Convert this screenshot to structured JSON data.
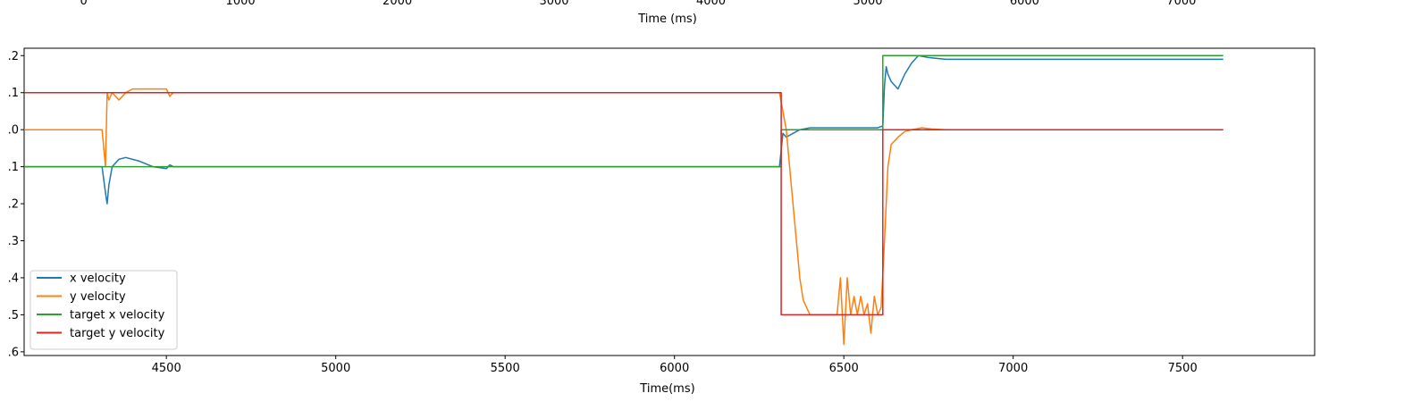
{
  "chart_data": [
    {
      "type": "line",
      "xlabel": "Time (ms)",
      "xlim": [
        -380,
        7850
      ],
      "x_ticks": [
        0,
        1000,
        2000,
        3000,
        4000,
        5000,
        6000,
        7000
      ],
      "series": []
    },
    {
      "type": "line",
      "xlabel": "Time(ms)",
      "ylabel": "",
      "xlim": [
        4080,
        7890
      ],
      "ylim": [
        -0.61,
        0.22
      ],
      "x_ticks": [
        4500,
        5000,
        5500,
        6000,
        6500,
        7000,
        7500
      ],
      "y_ticks": [
        0.2,
        0.1,
        0.0,
        -0.1,
        -0.2,
        -0.3,
        -0.4,
        -0.5,
        -0.6
      ],
      "y_tick_labels": [
        ".2",
        ".1",
        ".0",
        ".1",
        ".2",
        ".3",
        ".4",
        ".5",
        ".6"
      ],
      "grid": false,
      "legend_position": "lower-left",
      "series": [
        {
          "name": "x velocity",
          "color": "#1f77b4",
          "x": [
            4080,
            4310,
            4320,
            4325,
            4330,
            4340,
            4360,
            4380,
            4420,
            4460,
            4500,
            4510,
            4520,
            4600,
            4800,
            5000,
            5200,
            5400,
            5600,
            5800,
            6000,
            6100,
            6200,
            6310,
            6320,
            6330,
            6350,
            6370,
            6400,
            6450,
            6500,
            6550,
            6600,
            6615,
            6620,
            6625,
            6630,
            6640,
            6660,
            6680,
            6700,
            6720,
            6750,
            6800,
            6900,
            7000,
            7100,
            7200,
            7300,
            7400,
            7500,
            7580,
            7620
          ],
          "y": [
            -0.1,
            -0.1,
            -0.17,
            -0.2,
            -0.15,
            -0.1,
            -0.08,
            -0.075,
            -0.085,
            -0.1,
            -0.105,
            -0.095,
            -0.1,
            -0.1,
            -0.1,
            -0.1,
            -0.1,
            -0.1,
            -0.1,
            -0.1,
            -0.1,
            -0.1,
            -0.1,
            -0.1,
            -0.01,
            -0.02,
            -0.01,
            0.0,
            0.005,
            0.005,
            0.005,
            0.005,
            0.005,
            0.01,
            0.12,
            0.17,
            0.15,
            0.13,
            0.11,
            0.15,
            0.18,
            0.2,
            0.195,
            0.19,
            0.19,
            0.19,
            0.19,
            0.19,
            0.19,
            0.19,
            0.19,
            0.19,
            0.19
          ]
        },
        {
          "name": "y velocity",
          "color": "#ff7f0e",
          "x": [
            4080,
            4310,
            4320,
            4325,
            4330,
            4340,
            4360,
            4380,
            4400,
            4500,
            4510,
            4520,
            4600,
            4800,
            5000,
            5200,
            5400,
            5600,
            5800,
            6000,
            6200,
            6310,
            6320,
            6330,
            6340,
            6350,
            6360,
            6370,
            6380,
            6400,
            6450,
            6480,
            6490,
            6500,
            6510,
            6520,
            6530,
            6540,
            6550,
            6560,
            6570,
            6580,
            6590,
            6600,
            6610,
            6620,
            6630,
            6640,
            6650,
            6660,
            6680,
            6700,
            6730,
            6760,
            6800,
            7000,
            7200,
            7400,
            7620
          ],
          "y": [
            0.0,
            0.0,
            -0.1,
            0.1,
            0.08,
            0.1,
            0.08,
            0.1,
            0.11,
            0.11,
            0.09,
            0.1,
            0.1,
            0.1,
            0.1,
            0.1,
            0.1,
            0.1,
            0.1,
            0.1,
            0.1,
            0.1,
            0.05,
            0.0,
            -0.1,
            -0.2,
            -0.3,
            -0.4,
            -0.46,
            -0.5,
            -0.5,
            -0.5,
            -0.4,
            -0.58,
            -0.4,
            -0.5,
            -0.45,
            -0.5,
            -0.45,
            -0.5,
            -0.47,
            -0.55,
            -0.45,
            -0.5,
            -0.48,
            -0.3,
            -0.1,
            -0.04,
            -0.03,
            -0.02,
            -0.005,
            0.0,
            0.005,
            0.002,
            0.0,
            0.0,
            0.0,
            0.0,
            0.0
          ]
        },
        {
          "name": "target x velocity",
          "color": "#2ca02c",
          "x": [
            4080,
            6315,
            6315,
            6615,
            6615,
            7620
          ],
          "y": [
            -0.1,
            -0.1,
            0.0,
            0.0,
            0.2,
            0.2
          ]
        },
        {
          "name": "target y velocity",
          "color": "#d62728",
          "x": [
            4080,
            6315,
            6315,
            6615,
            6615,
            7620
          ],
          "y": [
            0.1,
            0.1,
            -0.5,
            -0.5,
            0.0,
            0.0
          ]
        }
      ]
    }
  ]
}
